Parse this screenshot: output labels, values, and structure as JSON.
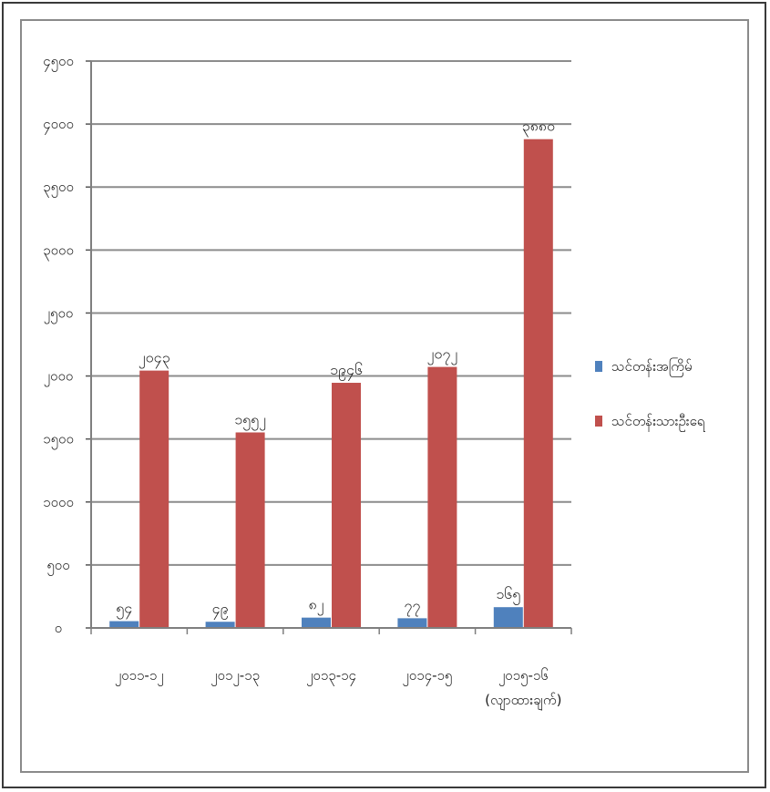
{
  "chart_data": {
    "type": "bar",
    "categories": [
      [
        "၂၀၁၁-၁၂"
      ],
      [
        "၂၀၁၂-၁၃"
      ],
      [
        "၂၀၁၃-၁၄"
      ],
      [
        "၂၀၁၄-၁၅"
      ],
      [
        "၂၀၁၅-၁၆",
        "(လျာထားချက်)"
      ]
    ],
    "series": [
      {
        "name": "သင်တန်းအကြိမ်",
        "color": "#4f81bd",
        "values": [
          54,
          49,
          82,
          77,
          165
        ],
        "labels": [
          "၅၄",
          "၄၉",
          "၈၂",
          "၇၇",
          "၁၆၅"
        ]
      },
      {
        "name": "သင်တန်းသားဦးရေ",
        "color": "#c0504d",
        "values": [
          2043,
          1552,
          1946,
          2072,
          3880
        ],
        "labels": [
          "၂၀၄၃",
          "၁၅၅၂",
          "၁၉၄၆",
          "၂၀၇၂",
          "၃၈၈၀"
        ]
      }
    ],
    "ylim": [
      0,
      4500
    ],
    "yticks": [
      {
        "value": 0,
        "label": "၀"
      },
      {
        "value": 500,
        "label": "၅၀၀"
      },
      {
        "value": 1000,
        "label": "၁၀၀၀"
      },
      {
        "value": 1500,
        "label": "၁၅၀၀"
      },
      {
        "value": 2000,
        "label": "၂၀၀၀"
      },
      {
        "value": 2500,
        "label": "၂၅၀၀"
      },
      {
        "value": 3000,
        "label": "၃၀၀၀"
      },
      {
        "value": 3500,
        "label": "၃၅၀၀"
      },
      {
        "value": 4000,
        "label": "၄၀၀၀"
      },
      {
        "value": 4500,
        "label": "၄၅၀၀"
      }
    ],
    "grid": true,
    "legend_position": "right",
    "gridline_color": "#8c8c8c"
  }
}
